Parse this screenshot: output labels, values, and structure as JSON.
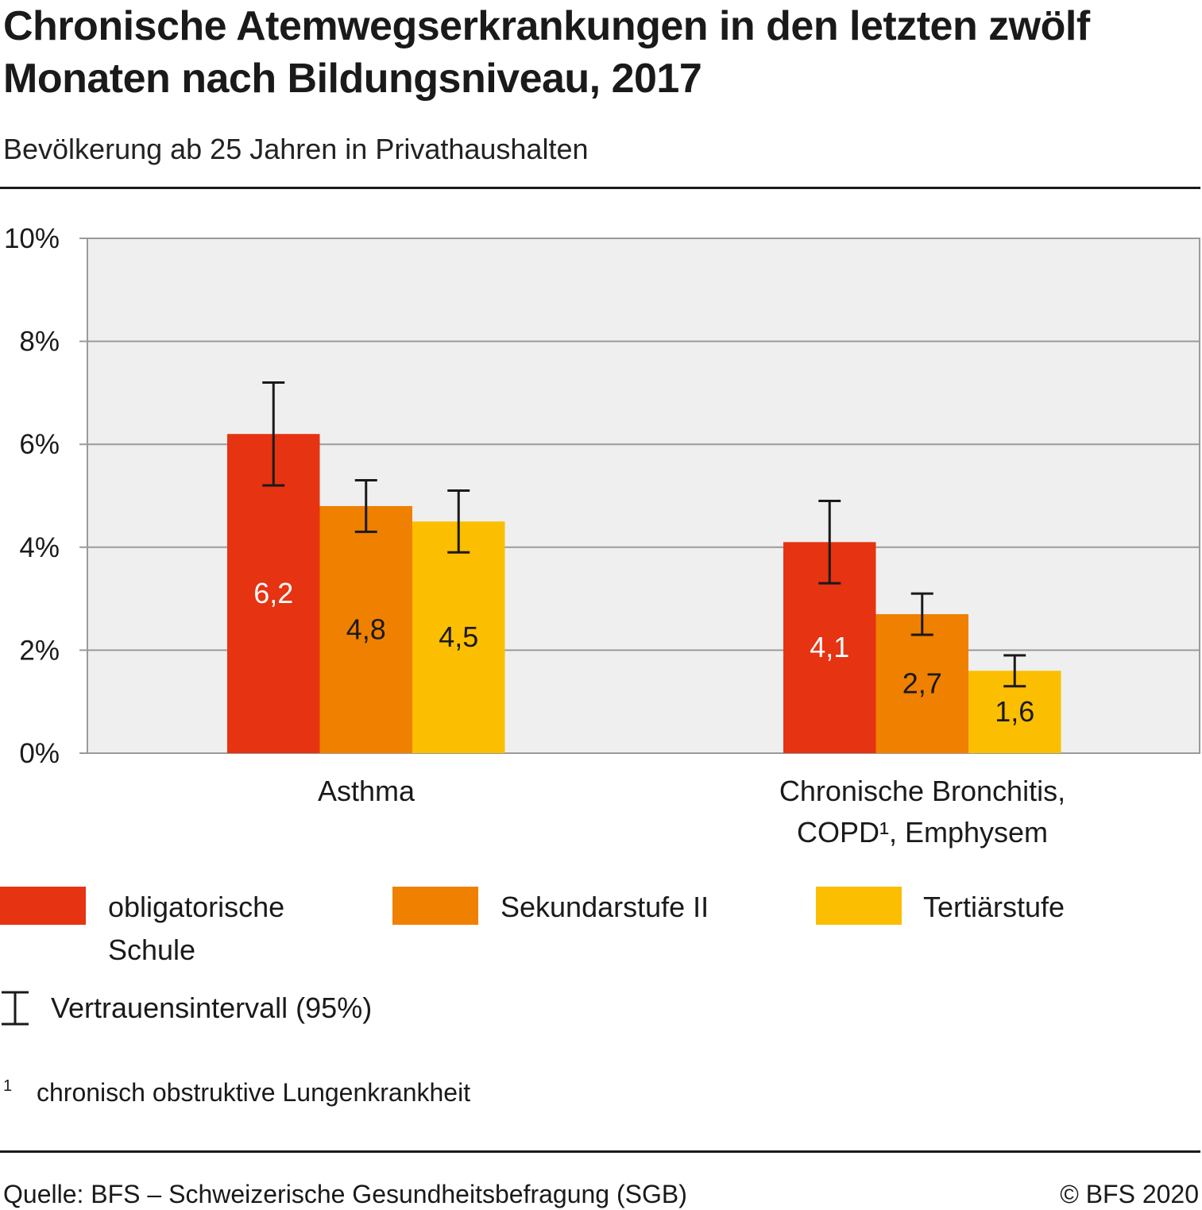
{
  "title": "Chronische Atemwegserkrankungen in den letzten zwölf Monaten nach Bildungsniveau, 2017",
  "subtitle": "Bevölkerung ab 25 Jahren in Privathaushalten",
  "chart_data": {
    "type": "bar",
    "categories": [
      "Asthma",
      "Chronische Bronchitis, COPD¹, Emphysem"
    ],
    "series": [
      {
        "name": "obligatorische Schule",
        "values": [
          6.2,
          4.1
        ],
        "ci_low": [
          5.2,
          3.3
        ],
        "ci_high": [
          7.2,
          4.9
        ],
        "labels": [
          "6,2",
          "4,1"
        ],
        "color": "#e63312",
        "label_color": "#ffffff"
      },
      {
        "name": "Sekundarstufe II",
        "values": [
          4.8,
          2.7
        ],
        "ci_low": [
          4.3,
          2.3
        ],
        "ci_high": [
          5.3,
          3.1
        ],
        "labels": [
          "4,8",
          "2,7"
        ],
        "color": "#f08000",
        "label_color": "#1a1a1a"
      },
      {
        "name": "Tertiärstufe",
        "values": [
          4.5,
          1.6
        ],
        "ci_low": [
          3.9,
          1.3
        ],
        "ci_high": [
          5.1,
          1.9
        ],
        "labels": [
          "4,5",
          "1,6"
        ],
        "color": "#fbbe00",
        "label_color": "#1a1a1a"
      }
    ],
    "ylim": [
      0,
      10
    ],
    "yticks": [
      "0%",
      "2%",
      "4%",
      "6%",
      "8%",
      "10%"
    ],
    "grid": true,
    "plot_background": "#efefef",
    "legend_position": "bottom"
  },
  "legend": {
    "items": [
      {
        "label_line1": "obligatorische",
        "label_line2": "Schule"
      },
      {
        "label_line1": "Sekundarstufe II",
        "label_line2": ""
      },
      {
        "label_line1": "Tertiärstufe",
        "label_line2": ""
      }
    ],
    "ci_label": "Vertrauensintervall (95%)"
  },
  "footnote": {
    "mark": "1",
    "text": "chronisch obstruktive Lungenkrankheit"
  },
  "source": "Quelle: BFS – Schweizerische Gesundheitsbefragung (SGB)",
  "copyright": "© BFS 2020"
}
